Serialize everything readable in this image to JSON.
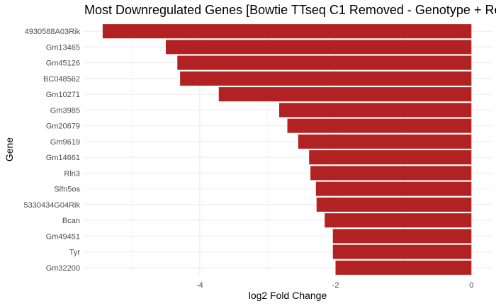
{
  "chart_data": {
    "type": "bar",
    "orientation": "horizontal",
    "title": "Most Downregulated Genes [Bowtie TTseq C1 Removed - Genotype + Re",
    "xlabel": "log2 Fold Change",
    "ylabel": "Gene",
    "xlim": [
      -5.7,
      0.3
    ],
    "xticks": [
      -4,
      -2,
      0
    ],
    "grid": true,
    "bar_color": "#B22222",
    "categories": [
      "4930588A03Rik",
      "Gm13465",
      "Gm45126",
      "BC048562",
      "Gm10271",
      "Gm3985",
      "Gm20679",
      "Gm9619",
      "Gm14661",
      "Rln3",
      "Slfn5os",
      "5330434G04Rik",
      "Bcan",
      "Gm49451",
      "Tyr",
      "Gm32200"
    ],
    "values": [
      -5.43,
      -4.5,
      -4.33,
      -4.29,
      -3.72,
      -2.83,
      -2.71,
      -2.55,
      -2.39,
      -2.37,
      -2.29,
      -2.28,
      -2.16,
      -2.04,
      -2.04,
      -2.0
    ]
  }
}
